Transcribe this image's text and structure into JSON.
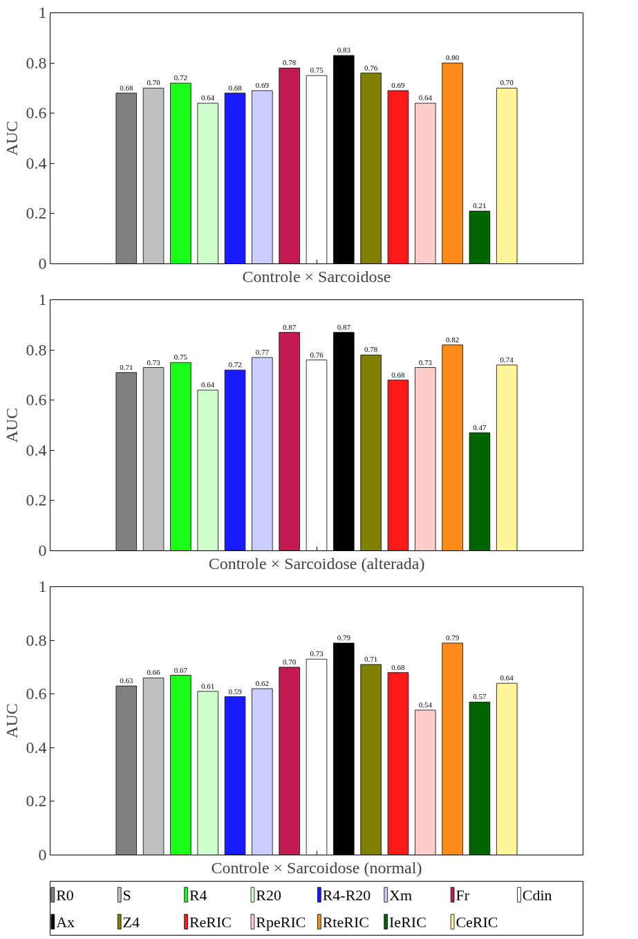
{
  "chart_data": [
    {
      "type": "bar",
      "xlabel": "Controle × Sarcoidose",
      "ylabel": "AUC",
      "categories": [
        null
      ],
      "ylim": [
        0,
        1
      ],
      "yticks": [
        0,
        0.2,
        0.4,
        0.6,
        0.8,
        1
      ],
      "grid": false,
      "series": [
        {
          "color": "#808080",
          "values": [
            0.68
          ],
          "value_labels": [
            "0.68"
          ]
        },
        {
          "color": "#bfbfbf",
          "values": [
            0.7
          ],
          "value_labels": [
            "0.70"
          ]
        },
        {
          "color": "#1aff1a",
          "values": [
            0.72
          ],
          "value_labels": [
            "0.72"
          ]
        },
        {
          "color": "#ccffcc",
          "values": [
            0.64
          ],
          "value_labels": [
            "0.64"
          ]
        },
        {
          "color": "#1a1aff",
          "values": [
            0.68
          ],
          "value_labels": [
            "0.68"
          ]
        },
        {
          "color": "#ccccff",
          "values": [
            0.69
          ],
          "value_labels": [
            "0.69"
          ]
        },
        {
          "color": "#c41a52",
          "values": [
            0.78
          ],
          "value_labels": [
            "0.78"
          ]
        },
        {
          "color": "#ffffff",
          "values": [
            0.75
          ],
          "value_labels": [
            "0.75"
          ]
        },
        {
          "color": "#000000",
          "values": [
            0.83
          ],
          "value_labels": [
            "0.83"
          ]
        },
        {
          "color": "#808000",
          "values": [
            0.76
          ],
          "value_labels": [
            "0.76"
          ]
        },
        {
          "color": "#ff1a1a",
          "values": [
            0.69
          ],
          "value_labels": [
            "0.69"
          ]
        },
        {
          "color": "#ffcccc",
          "values": [
            0.64
          ],
          "value_labels": [
            "0.64"
          ]
        },
        {
          "color": "#ff8c1a",
          "values": [
            0.8
          ],
          "value_labels": [
            "0.80"
          ]
        },
        {
          "color": "#006600",
          "values": [
            0.21
          ],
          "value_labels": [
            "0.21"
          ]
        },
        {
          "color": "#fff599",
          "values": [
            0.7
          ],
          "value_labels": [
            "0.70"
          ]
        }
      ]
    },
    {
      "type": "bar",
      "xlabel": "Controle × Sarcoidose (alterada)",
      "ylabel": "AUC",
      "categories": [
        null
      ],
      "ylim": [
        0,
        1
      ],
      "yticks": [
        0,
        0.2,
        0.4,
        0.6,
        0.8,
        1
      ],
      "grid": false,
      "series": [
        {
          "color": "#808080",
          "values": [
            0.71
          ],
          "value_labels": [
            "0.71"
          ]
        },
        {
          "color": "#bfbfbf",
          "values": [
            0.73
          ],
          "value_labels": [
            "0.73"
          ]
        },
        {
          "color": "#1aff1a",
          "values": [
            0.75
          ],
          "value_labels": [
            "0.75"
          ]
        },
        {
          "color": "#ccffcc",
          "values": [
            0.64
          ],
          "value_labels": [
            "0.64"
          ]
        },
        {
          "color": "#1a1aff",
          "values": [
            0.72
          ],
          "value_labels": [
            "0.72"
          ]
        },
        {
          "color": "#ccccff",
          "values": [
            0.77
          ],
          "value_labels": [
            "0.77"
          ]
        },
        {
          "color": "#c41a52",
          "values": [
            0.87
          ],
          "value_labels": [
            "0.87"
          ]
        },
        {
          "color": "#ffffff",
          "values": [
            0.76
          ],
          "value_labels": [
            "0.76"
          ]
        },
        {
          "color": "#000000",
          "values": [
            0.87
          ],
          "value_labels": [
            "0.87"
          ]
        },
        {
          "color": "#808000",
          "values": [
            0.78
          ],
          "value_labels": [
            "0.78"
          ]
        },
        {
          "color": "#ff1a1a",
          "values": [
            0.68
          ],
          "value_labels": [
            "0.68"
          ]
        },
        {
          "color": "#ffcccc",
          "values": [
            0.73
          ],
          "value_labels": [
            "0.73"
          ]
        },
        {
          "color": "#ff8c1a",
          "values": [
            0.82
          ],
          "value_labels": [
            "0.82"
          ]
        },
        {
          "color": "#006600",
          "values": [
            0.47
          ],
          "value_labels": [
            "0.47"
          ]
        },
        {
          "color": "#fff599",
          "values": [
            0.74
          ],
          "value_labels": [
            "0.74"
          ]
        }
      ]
    },
    {
      "type": "bar",
      "xlabel": "Controle × Sarcoidose (normal)",
      "ylabel": "AUC",
      "categories": [
        null
      ],
      "ylim": [
        0,
        1
      ],
      "yticks": [
        0,
        0.2,
        0.4,
        0.6,
        0.8,
        1
      ],
      "grid": false,
      "legend": "bottom",
      "series": [
        {
          "name": "R0",
          "color": "#808080",
          "values": [
            0.63
          ],
          "value_labels": [
            "0.63"
          ]
        },
        {
          "name": "S",
          "color": "#bfbfbf",
          "values": [
            0.66
          ],
          "value_labels": [
            "0.66"
          ]
        },
        {
          "name": "R4",
          "color": "#1aff1a",
          "values": [
            0.67
          ],
          "value_labels": [
            "0.67"
          ]
        },
        {
          "name": "R20",
          "color": "#ccffcc",
          "values": [
            0.61
          ],
          "value_labels": [
            "0.61"
          ]
        },
        {
          "name": "R4-R20",
          "color": "#1a1aff",
          "values": [
            0.59
          ],
          "value_labels": [
            "0.59"
          ]
        },
        {
          "name": "Xm",
          "color": "#ccccff",
          "values": [
            0.62
          ],
          "value_labels": [
            "0.62"
          ]
        },
        {
          "name": "Fr",
          "color": "#c41a52",
          "values": [
            0.7
          ],
          "value_labels": [
            "0.70"
          ]
        },
        {
          "name": "Cdin",
          "color": "#ffffff",
          "values": [
            0.73
          ],
          "value_labels": [
            "0.73"
          ]
        },
        {
          "name": "Ax",
          "color": "#000000",
          "values": [
            0.79
          ],
          "value_labels": [
            "0.79"
          ]
        },
        {
          "name": "Z4",
          "color": "#808000",
          "values": [
            0.71
          ],
          "value_labels": [
            "0.71"
          ]
        },
        {
          "name": "ReRIC",
          "color": "#ff1a1a",
          "values": [
            0.68
          ],
          "value_labels": [
            "0.68"
          ]
        },
        {
          "name": "RpeRIC",
          "color": "#ffcccc",
          "values": [
            0.54
          ],
          "value_labels": [
            "0.54"
          ]
        },
        {
          "name": "RteRIC",
          "color": "#ff8c1a",
          "values": [
            0.79
          ],
          "value_labels": [
            "0.79"
          ]
        },
        {
          "name": "IeRIC",
          "color": "#006600",
          "values": [
            0.57
          ],
          "value_labels": [
            "0.57"
          ]
        },
        {
          "name": "CeRIC",
          "color": "#fff599",
          "values": [
            0.64
          ],
          "value_labels": [
            "0.64"
          ]
        }
      ]
    }
  ]
}
